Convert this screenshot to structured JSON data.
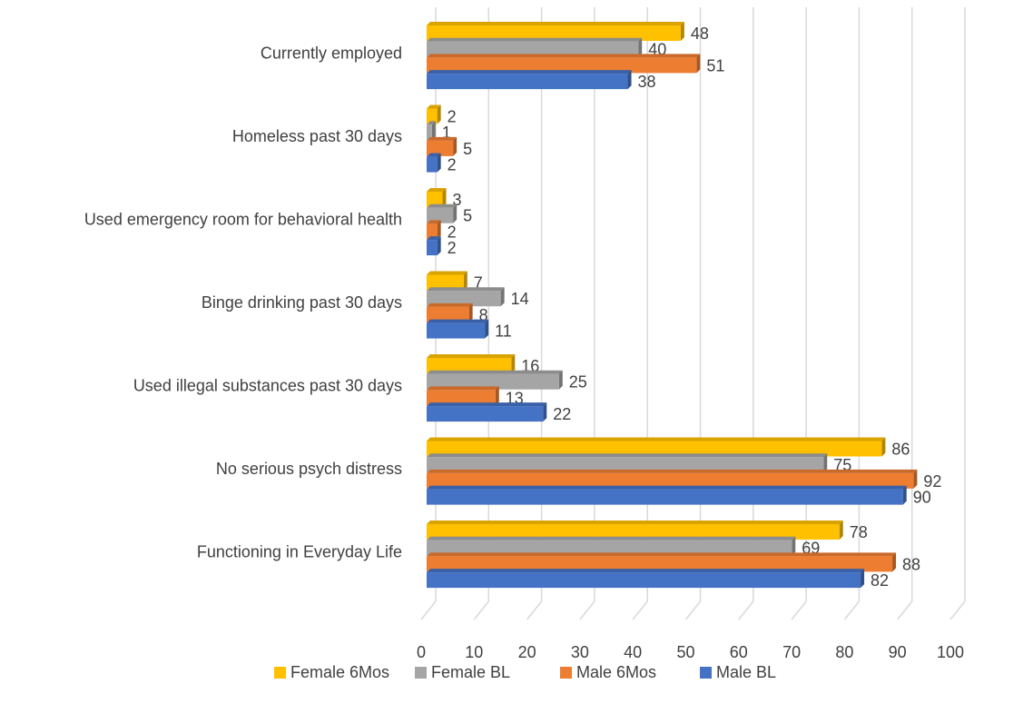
{
  "chart_data": {
    "type": "bar",
    "orientation": "horizontal",
    "style": "3d-clustered",
    "title": "",
    "xlabel": "",
    "ylabel": "",
    "xlim": [
      0,
      100
    ],
    "x_ticks": [
      0,
      10,
      20,
      30,
      40,
      50,
      60,
      70,
      80,
      90,
      100
    ],
    "grid": true,
    "legend_position": "bottom",
    "categories": [
      "Currently employed",
      "Homeless past 30 days",
      "Used emergency room for behavioral health",
      "Binge drinking past 30 days",
      "Used illegal substances past 30 days",
      "No serious psych distress",
      "Functioning in Everyday Life"
    ],
    "series": [
      {
        "name": "Female 6Mos",
        "color": "#FFC000",
        "values": [
          48,
          2,
          3,
          7,
          16,
          86,
          78
        ]
      },
      {
        "name": "Female BL",
        "color": "#A5A5A5",
        "values": [
          40,
          1,
          5,
          14,
          25,
          75,
          69
        ]
      },
      {
        "name": "Male 6Mos",
        "color": "#ED7D31",
        "values": [
          51,
          5,
          2,
          8,
          13,
          92,
          88
        ]
      },
      {
        "name": "Male BL",
        "color": "#4472C4",
        "values": [
          38,
          2,
          2,
          11,
          22,
          90,
          82
        ]
      }
    ]
  }
}
